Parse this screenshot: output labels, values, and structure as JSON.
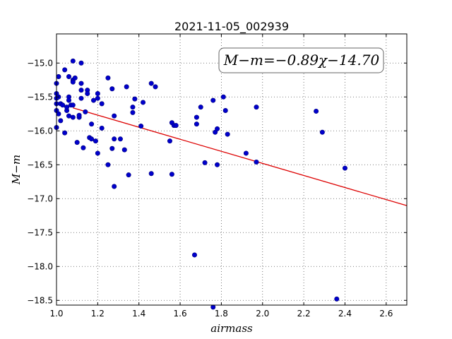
{
  "chart_data": {
    "type": "scatter",
    "title": "2021-11-05_002939",
    "xlabel": "airmass",
    "ylabel": "M−m",
    "xlim": [
      1.0,
      2.7
    ],
    "ylim": [
      -18.57,
      -14.57
    ],
    "y_inverted": true,
    "grid": true,
    "x_ticks": [
      "1.0",
      "1.2",
      "1.4",
      "1.6",
      "1.8",
      "2.0",
      "2.2",
      "2.4",
      "2.6"
    ],
    "y_ticks": [
      "−15.0",
      "−15.5",
      "−16.0",
      "−16.5",
      "−17.0",
      "−17.5",
      "−18.0",
      "−18.5"
    ],
    "annotation": "M−m=−0.89χ−14.70",
    "fit": {
      "slope": -0.89,
      "intercept": -14.7,
      "x_range": [
        1.08,
        2.7
      ],
      "color": "#dd0000"
    },
    "marker_color": "#0000cc",
    "points": [
      [
        1.0,
        -15.3
      ],
      [
        1.0,
        -15.45
      ],
      [
        1.0,
        -15.52
      ],
      [
        1.0,
        -15.6
      ],
      [
        1.0,
        -15.7
      ],
      [
        1.0,
        -15.95
      ],
      [
        1.01,
        -15.2
      ],
      [
        1.01,
        -15.5
      ],
      [
        1.01,
        -15.75
      ],
      [
        1.02,
        -15.85
      ],
      [
        1.02,
        -15.6
      ],
      [
        1.03,
        -15.62
      ],
      [
        1.04,
        -15.1
      ],
      [
        1.04,
        -16.03
      ],
      [
        1.05,
        -15.7
      ],
      [
        1.05,
        -15.65
      ],
      [
        1.06,
        -15.5
      ],
      [
        1.06,
        -15.55
      ],
      [
        1.06,
        -15.78
      ],
      [
        1.06,
        -15.2
      ],
      [
        1.07,
        -15.62
      ],
      [
        1.08,
        -14.97
      ],
      [
        1.08,
        -15.25
      ],
      [
        1.08,
        -15.28
      ],
      [
        1.08,
        -15.8
      ],
      [
        1.08,
        -15.62
      ],
      [
        1.09,
        -15.22
      ],
      [
        1.1,
        -16.17
      ],
      [
        1.11,
        -15.8
      ],
      [
        1.11,
        -15.77
      ],
      [
        1.12,
        -15.0
      ],
      [
        1.12,
        -15.3
      ],
      [
        1.12,
        -15.4
      ],
      [
        1.12,
        -15.52
      ],
      [
        1.13,
        -16.25
      ],
      [
        1.14,
        -15.72
      ],
      [
        1.15,
        -15.4
      ],
      [
        1.15,
        -15.45
      ],
      [
        1.16,
        -16.1
      ],
      [
        1.17,
        -16.12
      ],
      [
        1.17,
        -15.9
      ],
      [
        1.18,
        -15.55
      ],
      [
        1.19,
        -16.15
      ],
      [
        1.2,
        -15.45
      ],
      [
        1.2,
        -15.52
      ],
      [
        1.2,
        -16.33
      ],
      [
        1.22,
        -15.6
      ],
      [
        1.22,
        -15.96
      ],
      [
        1.25,
        -15.22
      ],
      [
        1.25,
        -16.5
      ],
      [
        1.27,
        -15.38
      ],
      [
        1.27,
        -16.26
      ],
      [
        1.28,
        -15.78
      ],
      [
        1.28,
        -16.12
      ],
      [
        1.28,
        -16.82
      ],
      [
        1.31,
        -16.12
      ],
      [
        1.33,
        -16.28
      ],
      [
        1.34,
        -15.35
      ],
      [
        1.35,
        -16.65
      ],
      [
        1.37,
        -15.65
      ],
      [
        1.37,
        -15.73
      ],
      [
        1.38,
        -15.53
      ],
      [
        1.41,
        -15.93
      ],
      [
        1.42,
        -15.58
      ],
      [
        1.46,
        -16.63
      ],
      [
        1.46,
        -15.3
      ],
      [
        1.48,
        -15.35
      ],
      [
        1.55,
        -16.15
      ],
      [
        1.56,
        -16.64
      ],
      [
        1.56,
        -15.88
      ],
      [
        1.57,
        -15.92
      ],
      [
        1.58,
        -15.92
      ],
      [
        1.67,
        -17.83
      ],
      [
        1.68,
        -15.9
      ],
      [
        1.68,
        -15.8
      ],
      [
        1.7,
        -15.65
      ],
      [
        1.72,
        -16.47
      ],
      [
        1.76,
        -15.55
      ],
      [
        1.77,
        -16.02
      ],
      [
        1.78,
        -15.97
      ],
      [
        1.78,
        -16.5
      ],
      [
        1.81,
        -15.5
      ],
      [
        1.82,
        -15.7
      ],
      [
        1.83,
        -16.05
      ],
      [
        1.92,
        -16.33
      ],
      [
        1.97,
        -15.65
      ],
      [
        1.97,
        -16.46
      ],
      [
        2.26,
        -15.71
      ],
      [
        2.29,
        -16.02
      ],
      [
        2.36,
        -18.48
      ],
      [
        2.4,
        -16.55
      ],
      [
        1.76,
        -18.6
      ]
    ]
  }
}
